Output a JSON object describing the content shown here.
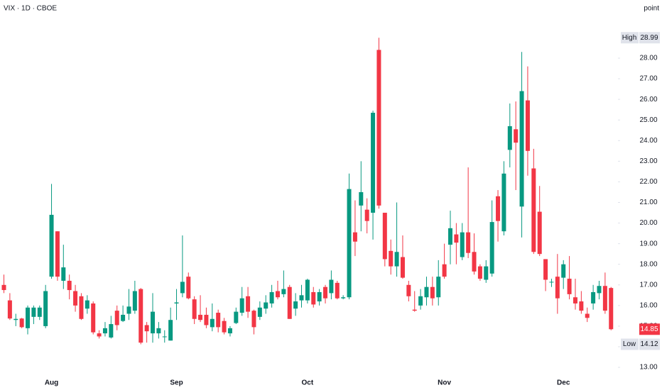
{
  "chart_data": {
    "type": "candlestick",
    "title": "VIX · 1D · CBOE",
    "unit": "point",
    "up_color": "#089981",
    "down_color": "#f23645",
    "categories": [
      null,
      null,
      null,
      null,
      null,
      null,
      null,
      null,
      "Aug",
      null,
      null,
      null,
      null,
      null,
      null,
      null,
      null,
      null,
      null,
      null,
      null,
      null,
      null,
      null,
      null,
      null,
      null,
      null,
      null,
      "Sep",
      null,
      null,
      null,
      null,
      null,
      null,
      null,
      null,
      null,
      null,
      null,
      null,
      null,
      null,
      null,
      null,
      null,
      null,
      null,
      null,
      null,
      "Oct",
      null,
      null,
      null,
      null,
      null,
      null,
      null,
      null,
      null,
      null,
      null,
      null,
      null,
      null,
      null,
      null,
      null,
      null,
      null,
      null,
      null,
      null,
      "Nov",
      null,
      null,
      null,
      null,
      null,
      null,
      null,
      null,
      null,
      null,
      null,
      null,
      null,
      null,
      null,
      null,
      null,
      null,
      null,
      "Dec",
      null,
      null,
      null,
      null,
      null,
      null,
      null,
      null
    ],
    "open": [
      17.0,
      16.25,
      15.3,
      15.37,
      14.9,
      15.45,
      15.45,
      15.0,
      17.4,
      19.6,
      17.2,
      17.2,
      16.7,
      16.45,
      15.85,
      16.1,
      14.65,
      14.65,
      14.45,
      15.75,
      15.25,
      15.6,
      15.75,
      16.8,
      15.05,
      14.65,
      14.65,
      14.5,
      14.3,
      16.1,
      16.6,
      17.4,
      16.3,
      15.55,
      15.55,
      14.95,
      15.65,
      15.25,
      14.65,
      15.15,
      15.65,
      16.45,
      15.75,
      15.45,
      15.85,
      16.1,
      16.7,
      16.55,
      16.9,
      15.85,
      16.25,
      16.25,
      16.65,
      16.2,
      16.9,
      16.6,
      17.1,
      16.35,
      16.4,
      19.55,
      20.85,
      20.65,
      20.5,
      28.4,
      20.5,
      18.65,
      17.9,
      18.35,
      17.0,
      15.8,
      16.0,
      16.4,
      16.9,
      16.4,
      18.0,
      18.95,
      19.45,
      18.35,
      19.55,
      18.6,
      17.9,
      17.25,
      17.55,
      21.3,
      19.6,
      23.55,
      24.55,
      20.8,
      25.95,
      22.65,
      20.55,
      18.25,
      17.15,
      17.4,
      17.35,
      17.3,
      16.4,
      16.2,
      15.6,
      16.1,
      16.6,
      16.95,
      16.85
    ],
    "high": [
      17.5,
      16.6,
      15.6,
      15.4,
      16.0,
      16.0,
      16.0,
      17.0,
      21.9,
      19.6,
      18.95,
      17.5,
      17.0,
      16.6,
      16.5,
      16.2,
      14.8,
      15.2,
      15.5,
      16.0,
      16.0,
      16.8,
      17.2,
      16.85,
      15.2,
      16.6,
      15.2,
      14.8,
      15.9,
      16.8,
      19.4,
      17.6,
      16.45,
      16.5,
      15.9,
      16.1,
      15.8,
      15.4,
      15.0,
      15.9,
      16.9,
      16.9,
      15.8,
      16.2,
      16.5,
      17.0,
      17.2,
      17.7,
      17.0,
      16.6,
      17.0,
      17.3,
      16.9,
      16.8,
      17.0,
      17.7,
      17.2,
      16.5,
      22.4,
      21.1,
      23.0,
      21.2,
      25.45,
      28.99,
      20.5,
      19.2,
      21.0,
      19.4,
      17.2,
      16.7,
      16.8,
      17.4,
      17.4,
      18.2,
      19.0,
      20.6,
      20.0,
      20.0,
      22.7,
      19.5,
      18.0,
      18.2,
      21.1,
      21.6,
      23.0,
      25.8,
      25.9,
      28.3,
      27.6,
      23.6,
      21.8,
      18.25,
      17.3,
      18.5,
      18.2,
      18.4,
      17.3,
      16.7,
      15.9,
      17.0,
      17.2,
      17.6,
      16.9
    ],
    "low": [
      16.6,
      15.3,
      15.0,
      14.9,
      14.6,
      15.1,
      15.3,
      14.9,
      17.3,
      17.2,
      16.8,
      16.3,
      15.7,
      15.3,
      15.6,
      14.6,
      14.4,
      14.5,
      14.4,
      14.8,
      15.2,
      15.3,
      15.6,
      14.12,
      14.2,
      14.2,
      14.4,
      14.2,
      14.3,
      15.3,
      16.4,
      16.3,
      15.1,
      15.2,
      14.9,
      14.75,
      14.7,
      14.6,
      14.5,
      15.1,
      15.5,
      15.4,
      14.6,
      15.3,
      15.6,
      15.9,
      16.3,
      16.4,
      15.35,
      15.5,
      15.9,
      16.1,
      15.9,
      16.0,
      16.1,
      16.3,
      16.3,
      16.3,
      16.3,
      18.4,
      19.6,
      19.5,
      19.2,
      20.7,
      17.9,
      17.5,
      17.4,
      17.3,
      16.2,
      15.7,
      15.8,
      16.0,
      16.0,
      16.0,
      17.3,
      18.0,
      18.0,
      18.2,
      18.3,
      17.5,
      17.2,
      17.1,
      17.4,
      19.1,
      19.4,
      22.7,
      21.6,
      19.3,
      22.3,
      18.5,
      18.4,
      16.7,
      16.9,
      15.6,
      16.8,
      16.3,
      15.8,
      15.6,
      15.2,
      15.8,
      16.3,
      15.6,
      14.8
    ],
    "close": [
      16.75,
      15.37,
      15.35,
      14.95,
      15.9,
      15.9,
      15.9,
      16.7,
      20.4,
      17.4,
      17.85,
      16.75,
      16.0,
      15.35,
      16.25,
      14.7,
      14.5,
      14.9,
      15.1,
      15.05,
      15.55,
      15.95,
      16.7,
      14.2,
      14.75,
      15.7,
      14.9,
      14.5,
      15.3,
      16.15,
      17.15,
      16.35,
      15.35,
      15.3,
      15.05,
      15.35,
      14.95,
      14.7,
      14.9,
      15.7,
      16.35,
      15.7,
      14.95,
      15.9,
      16.15,
      16.65,
      16.4,
      16.8,
      15.35,
      16.2,
      16.5,
      17.25,
      16.05,
      16.65,
      16.35,
      17.25,
      16.35,
      16.4,
      21.65,
      19.1,
      21.5,
      20.1,
      25.35,
      20.85,
      18.25,
      17.9,
      18.6,
      17.35,
      16.45,
      15.75,
      16.45,
      16.9,
      16.35,
      17.4,
      17.4,
      19.75,
      19.05,
      19.55,
      18.55,
      17.65,
      17.3,
      17.9,
      20.05,
      20.1,
      22.4,
      24.7,
      23.9,
      26.4,
      23.5,
      18.6,
      18.5,
      17.25,
      17.15,
      16.35,
      18.0,
      16.55,
      16.1,
      15.75,
      15.4,
      16.65,
      16.95,
      15.75,
      14.85
    ],
    "ylim": [
      12.59,
      30.82
    ],
    "yticks": [
      {
        "value": 13,
        "label": "13.00"
      },
      {
        "value": 14,
        "label": "14.00"
      },
      {
        "value": 15,
        "label": "15.00"
      },
      {
        "value": 16,
        "label": "16.00"
      },
      {
        "value": 17,
        "label": "17.00"
      },
      {
        "value": 18,
        "label": "18.00"
      },
      {
        "value": 19,
        "label": "19.00"
      },
      {
        "value": 20,
        "label": "20.00"
      },
      {
        "value": 21,
        "label": "21.00"
      },
      {
        "value": 22,
        "label": "22.00"
      },
      {
        "value": 23,
        "label": "23.00"
      },
      {
        "value": 24,
        "label": "24.00"
      },
      {
        "value": 25,
        "label": "25.00"
      },
      {
        "value": 26,
        "label": "26.00"
      },
      {
        "value": 27,
        "label": "27.00"
      },
      {
        "value": 28,
        "label": "28.00"
      }
    ],
    "high_marker": {
      "label": "High",
      "value": 28.99
    },
    "low_marker": {
      "label": "Low",
      "value": 14.12
    },
    "last_price": 14.85
  }
}
